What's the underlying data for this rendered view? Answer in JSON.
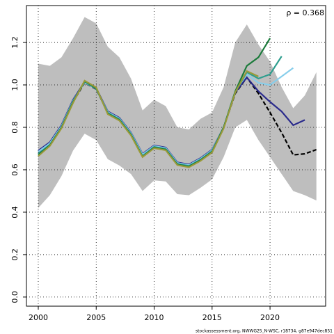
{
  "chart_data": {
    "type": "line",
    "annotation": "ρ = 0.368",
    "footer": "stockassessment.org, NWWG25_N-WSC, r18734, g87e947dec851",
    "x": [
      2000,
      2001,
      2002,
      2003,
      2004,
      2005,
      2006,
      2007,
      2008,
      2009,
      2010,
      2011,
      2012,
      2013,
      2014,
      2015,
      2016,
      2017,
      2018,
      2019,
      2020,
      2021,
      2022,
      2023,
      2024
    ],
    "band": {
      "color": "#bebebe",
      "upper": [
        1.1,
        1.09,
        1.13,
        1.22,
        1.32,
        1.29,
        1.18,
        1.13,
        1.03,
        0.88,
        0.93,
        0.9,
        0.8,
        0.79,
        0.84,
        0.87,
        0.99,
        1.2,
        1.285,
        1.19,
        1.11,
        0.99,
        0.89,
        0.95,
        1.06
      ],
      "lower": [
        0.42,
        0.48,
        0.57,
        0.69,
        0.77,
        0.74,
        0.65,
        0.62,
        0.58,
        0.5,
        0.55,
        0.545,
        0.485,
        0.48,
        0.515,
        0.555,
        0.66,
        0.8,
        0.835,
        0.74,
        0.66,
        0.58,
        0.5,
        0.48,
        0.455
      ]
    },
    "series": [
      {
        "color": "#000000",
        "dash": true,
        "values": [
          0.68,
          0.72,
          0.8,
          0.92,
          1.01,
          0.98,
          0.87,
          0.84,
          0.77,
          0.67,
          0.71,
          0.7,
          0.63,
          0.62,
          0.65,
          0.69,
          0.8,
          0.96,
          1.035,
          0.96,
          0.87,
          0.775,
          0.67,
          0.675,
          0.695
        ]
      },
      {
        "color": "#2a2a8c",
        "values": [
          0.69,
          0.73,
          0.81,
          0.93,
          1.015,
          0.985,
          0.875,
          0.845,
          0.775,
          0.675,
          0.715,
          0.705,
          0.635,
          0.625,
          0.655,
          0.695,
          0.8,
          0.965,
          1.035,
          0.97,
          0.92,
          0.875,
          0.81,
          0.835,
          null
        ]
      },
      {
        "color": "#87ceeb",
        "values": [
          0.685,
          0.725,
          0.805,
          0.925,
          1.012,
          0.982,
          0.872,
          0.842,
          0.772,
          0.672,
          0.712,
          0.702,
          0.632,
          0.622,
          0.652,
          0.692,
          0.8,
          0.97,
          1.05,
          1.01,
          1.0,
          1.04,
          1.08,
          null,
          null
        ]
      },
      {
        "color": "#2e9e8e",
        "values": [
          0.675,
          0.718,
          0.8,
          0.922,
          1.015,
          0.982,
          0.868,
          0.838,
          0.768,
          0.665,
          0.708,
          0.698,
          0.628,
          0.618,
          0.648,
          0.688,
          0.8,
          0.965,
          1.06,
          1.03,
          1.05,
          1.135,
          null,
          null,
          null
        ]
      },
      {
        "color": "#1a7a3a",
        "values": [
          0.67,
          0.715,
          0.798,
          0.918,
          1.018,
          0.985,
          0.865,
          0.835,
          0.765,
          0.662,
          0.705,
          0.695,
          0.625,
          0.615,
          0.645,
          0.685,
          0.8,
          0.97,
          1.09,
          1.13,
          1.22,
          null,
          null,
          null,
          null
        ]
      },
      {
        "color": "#9a9a3a",
        "values": [
          0.665,
          0.712,
          0.795,
          0.915,
          1.02,
          0.988,
          0.862,
          0.832,
          0.762,
          0.66,
          0.702,
          0.692,
          0.622,
          0.612,
          0.642,
          0.682,
          0.795,
          0.965,
          1.065,
          1.04,
          null,
          null,
          null,
          null,
          null
        ]
      }
    ],
    "xlim": [
      1998.98,
      2024.8
    ],
    "ylim": [
      -0.043,
      1.374
    ],
    "xticks": [
      2000,
      2005,
      2010,
      2015,
      2020
    ],
    "yticks": [
      {
        "value": 0,
        "label": "0.0"
      },
      {
        "value": 0.2,
        "label": "0.2"
      },
      {
        "value": 0.4,
        "label": "0.4"
      },
      {
        "value": 0.6,
        "label": "0.6"
      },
      {
        "value": 0.8,
        "label": "0.8"
      },
      {
        "value": 1.0,
        "label": "1.0"
      },
      {
        "value": 1.2,
        "label": "1.2"
      }
    ],
    "grid": true
  }
}
